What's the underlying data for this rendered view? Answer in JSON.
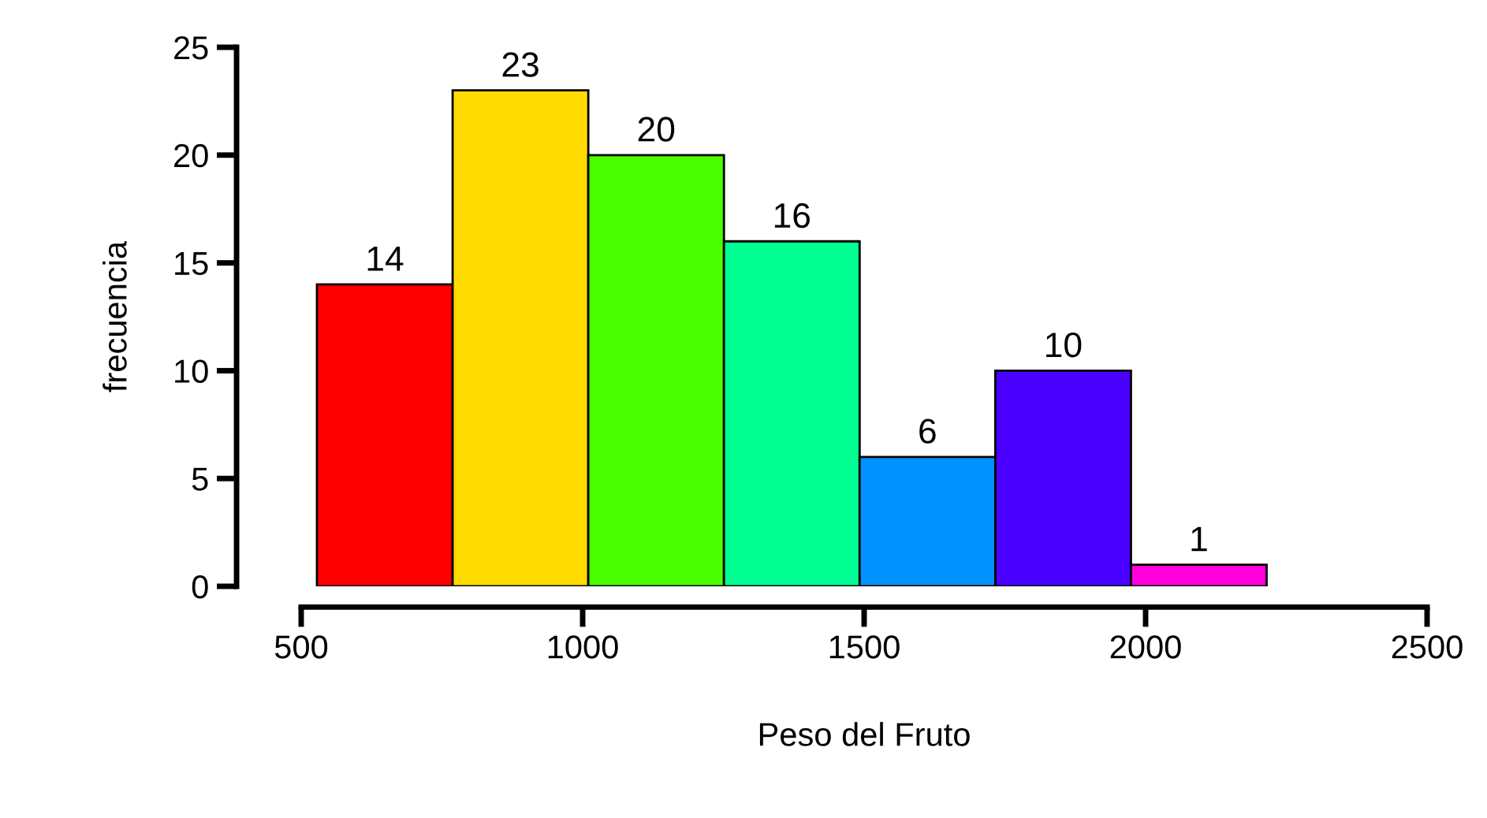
{
  "chart_data": {
    "type": "histogram",
    "xlabel": "Peso del Fruto",
    "ylabel": "frecuencia",
    "bins": [
      528,
      769,
      1010,
      1251,
      1492,
      1733,
      1974,
      2215
    ],
    "values": [
      14,
      23,
      20,
      16,
      6,
      10,
      1
    ],
    "colors": [
      "#ff0000",
      "#ffdb00",
      "#49ff00",
      "#00ff92",
      "#0092ff",
      "#4900ff",
      "#ff00db"
    ],
    "data_labels": true,
    "grid": false,
    "xlim": [
      500,
      2500
    ],
    "xticks": [
      500,
      1000,
      1500,
      2000,
      2500
    ],
    "ylim": [
      0,
      25
    ],
    "yticks": [
      0,
      5,
      10,
      15,
      20,
      25
    ]
  }
}
